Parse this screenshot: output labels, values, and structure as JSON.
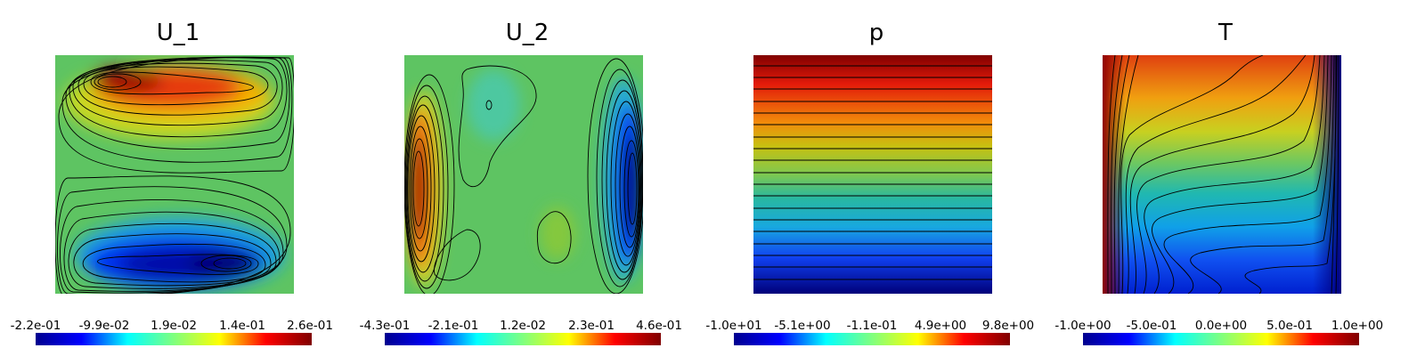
{
  "panels": [
    {
      "title": "U_1",
      "colorbar_ticks": [
        "-2.2e-01",
        "-9.9e-02",
        "1.9e-02",
        "1.4e-01",
        "2.6e-01"
      ],
      "range": [
        -0.22,
        0.26
      ]
    },
    {
      "title": "U_2",
      "colorbar_ticks": [
        "-4.3e-01",
        "-2.1e-01",
        "1.2e-02",
        "2.3e-01",
        "4.6e-01"
      ],
      "range": [
        -0.43,
        0.46
      ]
    },
    {
      "title": "p",
      "colorbar_ticks": [
        "-1.0e+01",
        "-5.1e+00",
        "-1.1e-01",
        "4.9e+00",
        "9.8e+00"
      ],
      "range": [
        -10.0,
        9.8
      ]
    },
    {
      "title": "T",
      "colorbar_ticks": [
        "-1.0e+00",
        "-5.0e-01",
        "0.0e+00",
        "5.0e-01",
        "1.0e+00"
      ],
      "range": [
        -1.0,
        1.0
      ]
    }
  ],
  "chart_data": [
    {
      "type": "heatmap",
      "title": "U_1",
      "colormap": "jet",
      "contours": true,
      "value_range": [
        -0.22,
        0.26
      ],
      "colorbar_ticks": [
        "-2.2e-01",
        "-9.9e-02",
        "1.9e-02",
        "1.4e-01",
        "2.6e-01"
      ]
    },
    {
      "type": "heatmap",
      "title": "U_2",
      "colormap": "jet",
      "contours": true,
      "value_range": [
        -0.43,
        0.46
      ],
      "colorbar_ticks": [
        "-4.3e-01",
        "-2.1e-01",
        "1.2e-02",
        "2.3e-01",
        "4.6e-01"
      ]
    },
    {
      "type": "heatmap",
      "title": "p",
      "colormap": "jet",
      "contours": true,
      "value_range": [
        -10.0,
        9.8
      ],
      "colorbar_ticks": [
        "-1.0e+01",
        "-5.1e+00",
        "-1.1e-01",
        "4.9e+00",
        "9.8e+00"
      ]
    },
    {
      "type": "heatmap",
      "title": "T",
      "colormap": "jet",
      "contours": true,
      "value_range": [
        -1.0,
        1.0
      ],
      "colorbar_ticks": [
        "-1.0e+00",
        "-5.0e-01",
        "0.0e+00",
        "5.0e-01",
        "1.0e+00"
      ]
    }
  ]
}
